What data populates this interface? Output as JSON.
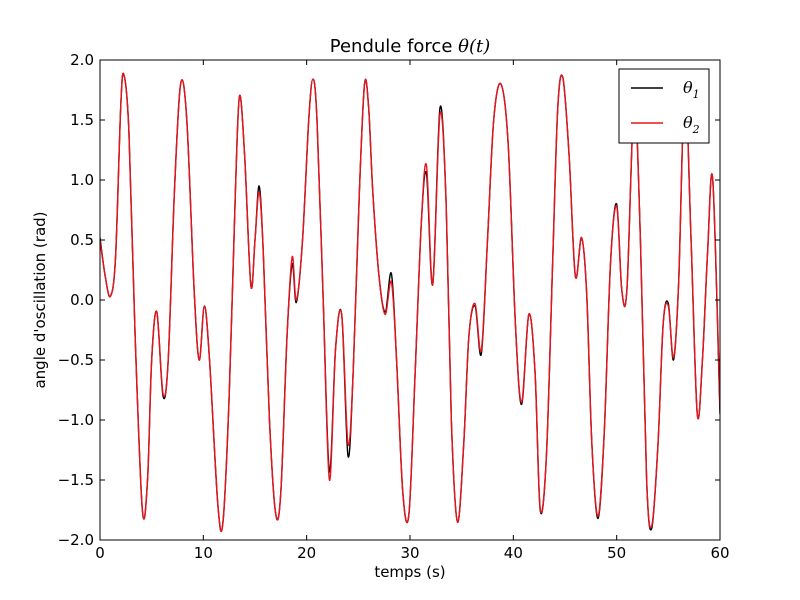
{
  "chart_data": {
    "type": "line",
    "title": "Pendule force θ(t)",
    "title_prefix": "Pendule force ",
    "title_math": "θ(t)",
    "xlabel": "temps (s)",
    "ylabel": "angle d'oscillation (rad)",
    "xlim": [
      0,
      60
    ],
    "ylim": [
      -2.0,
      2.0
    ],
    "xticks": [
      0,
      10,
      20,
      30,
      40,
      50,
      60
    ],
    "yticks": [
      2.0,
      1.5,
      1.0,
      0.5,
      0.0,
      -0.5,
      -1.0,
      -1.5,
      -2.0
    ],
    "xtick_labels": [
      "0",
      "10",
      "20",
      "30",
      "40",
      "50",
      "60"
    ],
    "ytick_labels": [
      "2.0",
      "1.5",
      "1.0",
      "0.5",
      "0.0",
      "−0.5",
      "−1.0",
      "−1.5",
      "−2.0"
    ],
    "grid": false,
    "legend_position": "top-right",
    "series": [
      {
        "name": "θ₁",
        "label_base": "θ",
        "label_sub": "1",
        "color": "#000000",
        "x": [
          0,
          0.5,
          1.0,
          1.5,
          2.0,
          2.3,
          2.8,
          3.4,
          4.1,
          4.6,
          5.0,
          5.5,
          6.1,
          6.6,
          7.2,
          7.8,
          8.4,
          9.1,
          9.6,
          10.1,
          10.6,
          11.4,
          11.9,
          12.5,
          13.1,
          13.5,
          14.0,
          14.6,
          15.0,
          15.4,
          15.8,
          16.4,
          17.0,
          17.5,
          18.1,
          18.6,
          19.0,
          19.6,
          20.2,
          20.6,
          21.0,
          21.6,
          22.2,
          22.8,
          23.4,
          24.0,
          24.5,
          25.1,
          25.6,
          26.0,
          26.4,
          27.0,
          27.6,
          28.2,
          28.7,
          29.3,
          29.9,
          30.5,
          31.1,
          31.6,
          32.2,
          32.9,
          33.5,
          34.0,
          34.6,
          35.2,
          35.7,
          36.3,
          36.9,
          37.5,
          38.1,
          38.8,
          39.5,
          40.2,
          40.8,
          41.5,
          42.1,
          42.6,
          43.2,
          43.8,
          44.3,
          44.8,
          45.4,
          46.0,
          46.6,
          47.1,
          47.6,
          48.2,
          48.8,
          49.4,
          50.0,
          50.5,
          51.0,
          51.7,
          52.3,
          52.9,
          53.4,
          54.0,
          54.5,
          55.0,
          55.5,
          56.0,
          56.6,
          57.2,
          57.8,
          58.3,
          58.8,
          59.3,
          60.0
        ],
        "y": [
          0.52,
          0.2,
          0.03,
          0.35,
          1.6,
          1.88,
          1.4,
          -0.3,
          -1.75,
          -1.5,
          -0.5,
          -0.1,
          -0.8,
          -0.5,
          0.9,
          1.8,
          1.5,
          0.1,
          -0.5,
          -0.05,
          -0.5,
          -1.7,
          -1.85,
          -0.8,
          0.9,
          1.7,
          1.2,
          0.12,
          0.5,
          0.95,
          0.4,
          -1.0,
          -1.78,
          -1.6,
          -0.3,
          0.3,
          -0.02,
          0.5,
          1.5,
          1.84,
          1.5,
          0.0,
          -1.43,
          -0.4,
          -0.13,
          -1.3,
          -0.6,
          0.9,
          1.8,
          1.6,
          0.9,
          0.2,
          -0.1,
          0.22,
          -0.5,
          -1.6,
          -1.78,
          -0.6,
          0.65,
          1.05,
          0.13,
          1.6,
          0.8,
          -1.0,
          -1.85,
          -1.2,
          -0.3,
          -0.05,
          -0.45,
          0.5,
          1.5,
          1.8,
          1.3,
          -0.2,
          -0.87,
          -0.12,
          -0.6,
          -1.75,
          -1.3,
          0.3,
          1.6,
          1.85,
          1.2,
          0.2,
          0.52,
          0.05,
          -1.2,
          -1.82,
          -1.1,
          0.3,
          0.8,
          0.08,
          0.1,
          1.65,
          0.5,
          -1.5,
          -1.9,
          -1.2,
          -0.2,
          -0.03,
          -0.5,
          0.15,
          1.8,
          0.5,
          -0.95,
          -0.5,
          0.4,
          1.0,
          -0.95
        ]
      },
      {
        "name": "θ₂",
        "label_base": "θ",
        "label_sub": "2",
        "color": "#e8141c",
        "x": [
          0,
          0.5,
          1.0,
          1.5,
          2.0,
          2.3,
          2.8,
          3.4,
          4.1,
          4.6,
          5.0,
          5.5,
          6.1,
          6.6,
          7.2,
          7.8,
          8.4,
          9.1,
          9.6,
          10.1,
          10.6,
          11.4,
          11.9,
          12.5,
          13.1,
          13.5,
          14.0,
          14.6,
          15.0,
          15.4,
          15.8,
          16.4,
          17.0,
          17.5,
          18.1,
          18.6,
          19.0,
          19.6,
          20.2,
          20.6,
          21.0,
          21.6,
          22.2,
          22.8,
          23.4,
          24.0,
          24.5,
          25.1,
          25.6,
          26.0,
          26.4,
          27.0,
          27.6,
          28.2,
          28.7,
          29.3,
          29.9,
          30.5,
          31.1,
          31.6,
          32.2,
          32.9,
          33.5,
          34.0,
          34.6,
          35.2,
          35.7,
          36.3,
          36.9,
          37.5,
          38.1,
          38.8,
          39.5,
          40.2,
          40.8,
          41.5,
          42.1,
          42.6,
          43.2,
          43.8,
          44.3,
          44.8,
          45.4,
          46.0,
          46.6,
          47.1,
          47.6,
          48.2,
          48.8,
          49.4,
          50.0,
          50.5,
          51.0,
          51.7,
          52.3,
          52.9,
          53.4,
          54.0,
          54.5,
          55.0,
          55.5,
          56.0,
          56.6,
          57.2,
          57.8,
          58.3,
          58.8,
          59.3,
          60.0
        ],
        "y": [
          0.5,
          0.2,
          0.03,
          0.35,
          1.6,
          1.88,
          1.4,
          -0.3,
          -1.75,
          -1.5,
          -0.5,
          -0.1,
          -0.78,
          -0.5,
          0.9,
          1.8,
          1.5,
          0.1,
          -0.5,
          -0.05,
          -0.5,
          -1.7,
          -1.85,
          -0.8,
          0.9,
          1.7,
          1.2,
          0.12,
          0.5,
          0.9,
          0.4,
          -1.0,
          -1.78,
          -1.6,
          -0.3,
          0.36,
          -0.0,
          0.5,
          1.5,
          1.84,
          1.5,
          0.0,
          -1.5,
          -0.4,
          -0.13,
          -1.2,
          -0.6,
          0.9,
          1.8,
          1.6,
          0.9,
          0.2,
          -0.12,
          0.15,
          -0.5,
          -1.6,
          -1.78,
          -0.6,
          0.65,
          1.12,
          0.13,
          1.55,
          0.8,
          -1.0,
          -1.85,
          -1.2,
          -0.3,
          -0.03,
          -0.42,
          0.5,
          1.5,
          1.8,
          1.3,
          -0.2,
          -0.85,
          -0.12,
          -0.6,
          -1.74,
          -1.3,
          0.3,
          1.6,
          1.85,
          1.2,
          0.2,
          0.52,
          0.05,
          -1.2,
          -1.8,
          -1.1,
          0.3,
          0.78,
          0.08,
          0.1,
          1.65,
          0.5,
          -1.5,
          -1.88,
          -1.2,
          -0.2,
          -0.05,
          -0.48,
          0.15,
          1.78,
          0.5,
          -0.95,
          -0.5,
          0.4,
          1.0,
          -0.9
        ]
      }
    ]
  }
}
